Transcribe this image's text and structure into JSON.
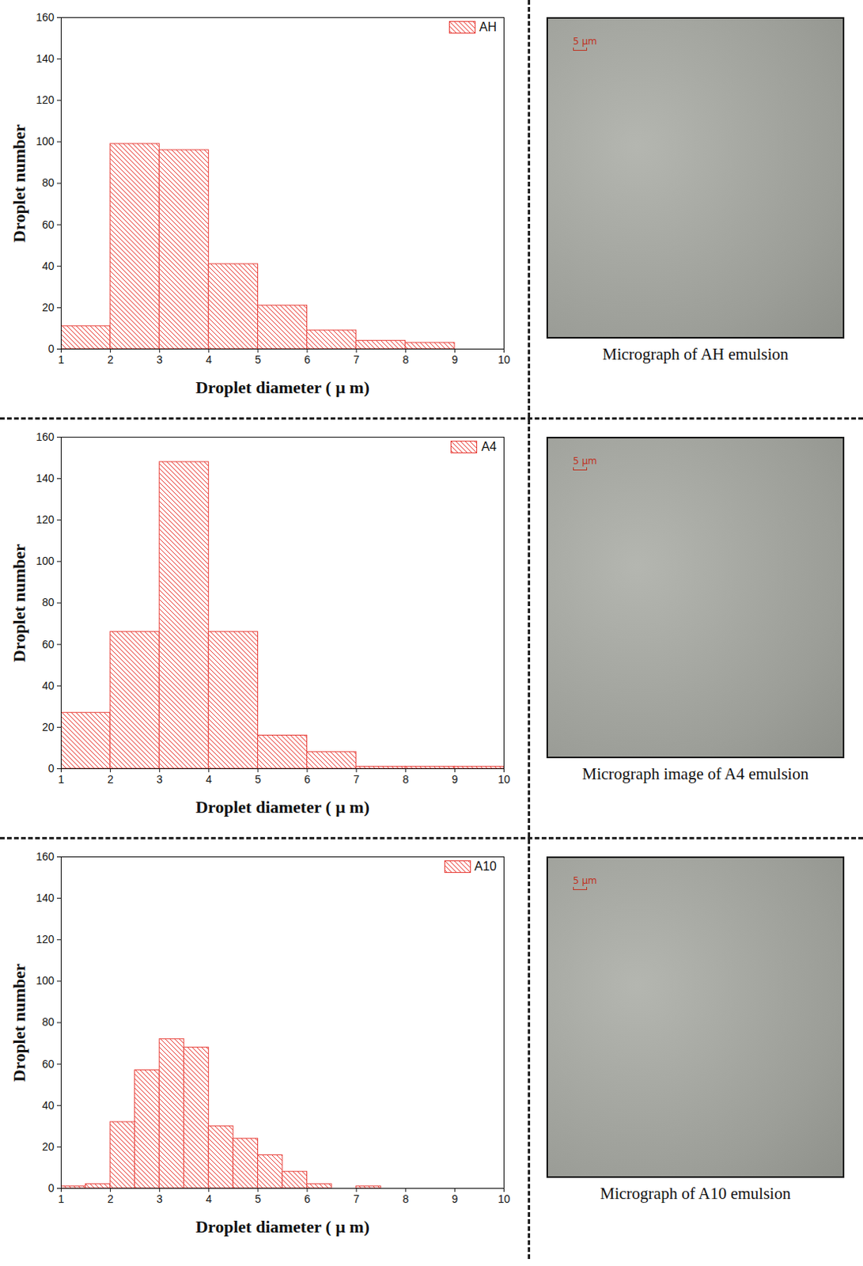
{
  "chart_data": [
    {
      "type": "histogram",
      "xlabel": "Droplet diameter ( μ m)",
      "ylabel": "Droplet number",
      "bins": [
        1,
        2,
        3,
        4,
        5,
        6,
        7,
        8,
        9
      ],
      "series": [
        {
          "name": "AH",
          "color": "#e8403a",
          "values": [
            11,
            99,
            96,
            41,
            21,
            9,
            4,
            3
          ]
        }
      ],
      "xlim": [
        1,
        10
      ],
      "xticks": [
        1,
        2,
        3,
        4,
        5,
        6,
        7,
        8,
        9,
        10
      ],
      "ylim": [
        0,
        160
      ],
      "yticks": [
        0,
        20,
        40,
        60,
        80,
        100,
        120,
        140,
        160
      ],
      "legend": "upper right",
      "grid": false
    },
    {
      "type": "histogram",
      "xlabel": "Droplet diameter ( μ m)",
      "ylabel": "Droplet number",
      "bins": [
        1,
        2,
        3,
        4,
        5,
        6,
        7,
        8,
        9,
        10
      ],
      "series": [
        {
          "name": "A4",
          "color": "#e8403a",
          "values": [
            27,
            66,
            148,
            66,
            16,
            8,
            1,
            1,
            1
          ]
        }
      ],
      "xlim": [
        1,
        10
      ],
      "xticks": [
        1,
        2,
        3,
        4,
        5,
        6,
        7,
        8,
        9,
        10
      ],
      "ylim": [
        0,
        160
      ],
      "yticks": [
        0,
        20,
        40,
        60,
        80,
        100,
        120,
        140,
        160
      ],
      "legend": "upper right",
      "grid": false
    },
    {
      "type": "histogram",
      "xlabel": "Droplet diameter ( μ m)",
      "ylabel": "Droplet number",
      "bins": [
        1,
        1.5,
        2,
        2.5,
        3,
        3.5,
        4,
        4.5,
        5,
        5.5,
        6,
        6.5,
        7,
        7.5
      ],
      "series": [
        {
          "name": "A10",
          "color": "#e8403a",
          "values": [
            1,
            2,
            32,
            57,
            72,
            68,
            30,
            24,
            16,
            8,
            2,
            0,
            1
          ]
        }
      ],
      "xlim": [
        1,
        10
      ],
      "xticks": [
        1,
        2,
        3,
        4,
        5,
        6,
        7,
        8,
        9,
        10
      ],
      "ylim": [
        0,
        160
      ],
      "yticks": [
        0,
        20,
        40,
        60,
        80,
        100,
        120,
        140,
        160
      ],
      "legend": "upper right",
      "grid": false
    }
  ],
  "micrographs": [
    {
      "caption": "Micrograph of AH emulsion",
      "scale_label": "5 μm"
    },
    {
      "caption": "Micrograph image of A4 emulsion",
      "scale_label": "5 μm"
    },
    {
      "caption": "Micrograph of A10 emulsion",
      "scale_label": "5 μm"
    }
  ]
}
